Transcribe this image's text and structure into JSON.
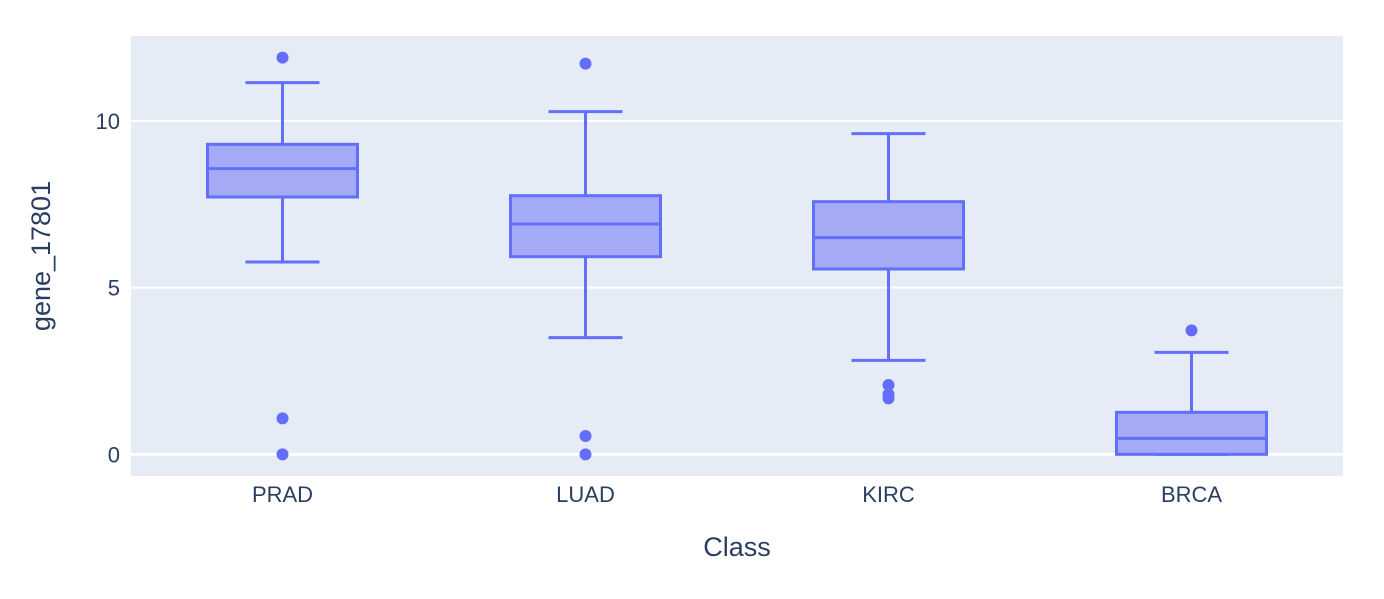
{
  "chart_data": {
    "type": "box",
    "title": "",
    "xlabel": "Class",
    "ylabel": "gene_17801",
    "ylim": [
      -0.65,
      12.55
    ],
    "y_ticks": [
      0,
      5,
      10
    ],
    "x_tick_labels": [
      "PRAD",
      "LUAD",
      "KIRC",
      "BRCA"
    ],
    "grid": true,
    "colors": {
      "plot_bg": "#e5ecf6",
      "grid": "#ffffff",
      "box_line": "#636efa",
      "box_fill": "#a5aaf7",
      "text": "#2a3f5f"
    },
    "series": [
      {
        "category": "PRAD",
        "min": 5.77,
        "q1": 7.72,
        "median": 8.57,
        "q3": 9.3,
        "max": 11.15,
        "outliers": [
          11.9,
          1.08,
          0.0
        ]
      },
      {
        "category": "LUAD",
        "min": 3.5,
        "q1": 5.93,
        "median": 6.91,
        "q3": 7.76,
        "max": 10.28,
        "outliers": [
          11.72,
          0.55,
          0.0
        ]
      },
      {
        "category": "KIRC",
        "min": 2.82,
        "q1": 5.56,
        "median": 6.5,
        "q3": 7.58,
        "max": 9.62,
        "outliers": [
          2.08,
          1.8,
          1.68
        ]
      },
      {
        "category": "BRCA",
        "min": 0.0,
        "q1": 0.0,
        "median": 0.48,
        "q3": 1.26,
        "max": 3.06,
        "outliers": [
          3.72
        ]
      }
    ]
  }
}
